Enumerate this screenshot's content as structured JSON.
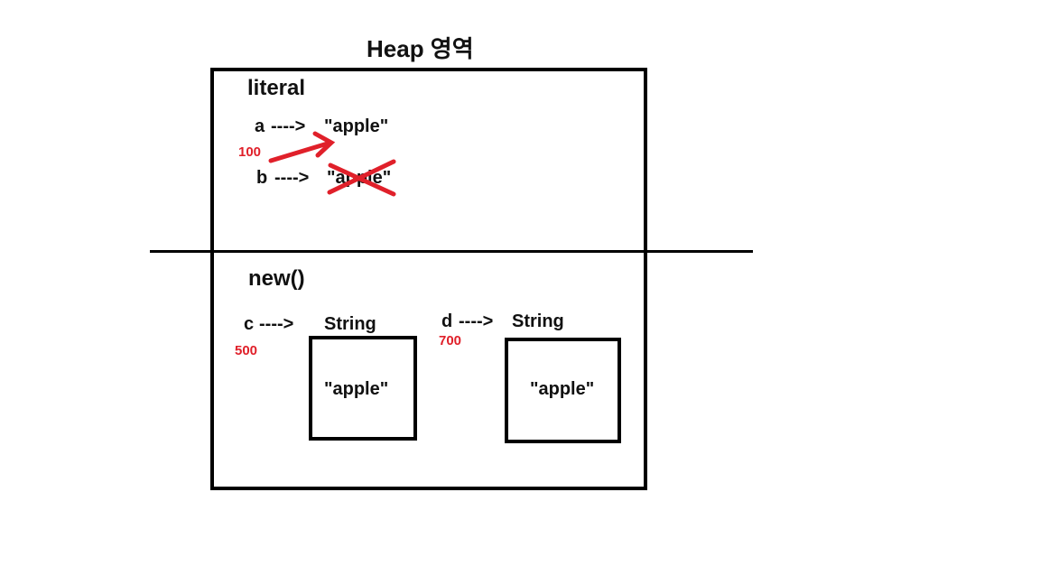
{
  "title": "Heap 영역",
  "literal": {
    "heading": "literal",
    "row_a": {
      "var": "a",
      "arrow": "---->",
      "value": "\"apple\"",
      "address": "100"
    },
    "row_b": {
      "var": "b",
      "arrow": "---->",
      "value": "\"apple\""
    },
    "annotation_color": "#e0202a"
  },
  "new_section": {
    "heading": "new()",
    "row_c": {
      "var": "c",
      "arrow": "---->",
      "type": "String",
      "value": "\"apple\"",
      "address": "500"
    },
    "row_d": {
      "var": "d",
      "arrow": "---->",
      "type": "String",
      "value": "\"apple\"",
      "address": "700"
    }
  }
}
